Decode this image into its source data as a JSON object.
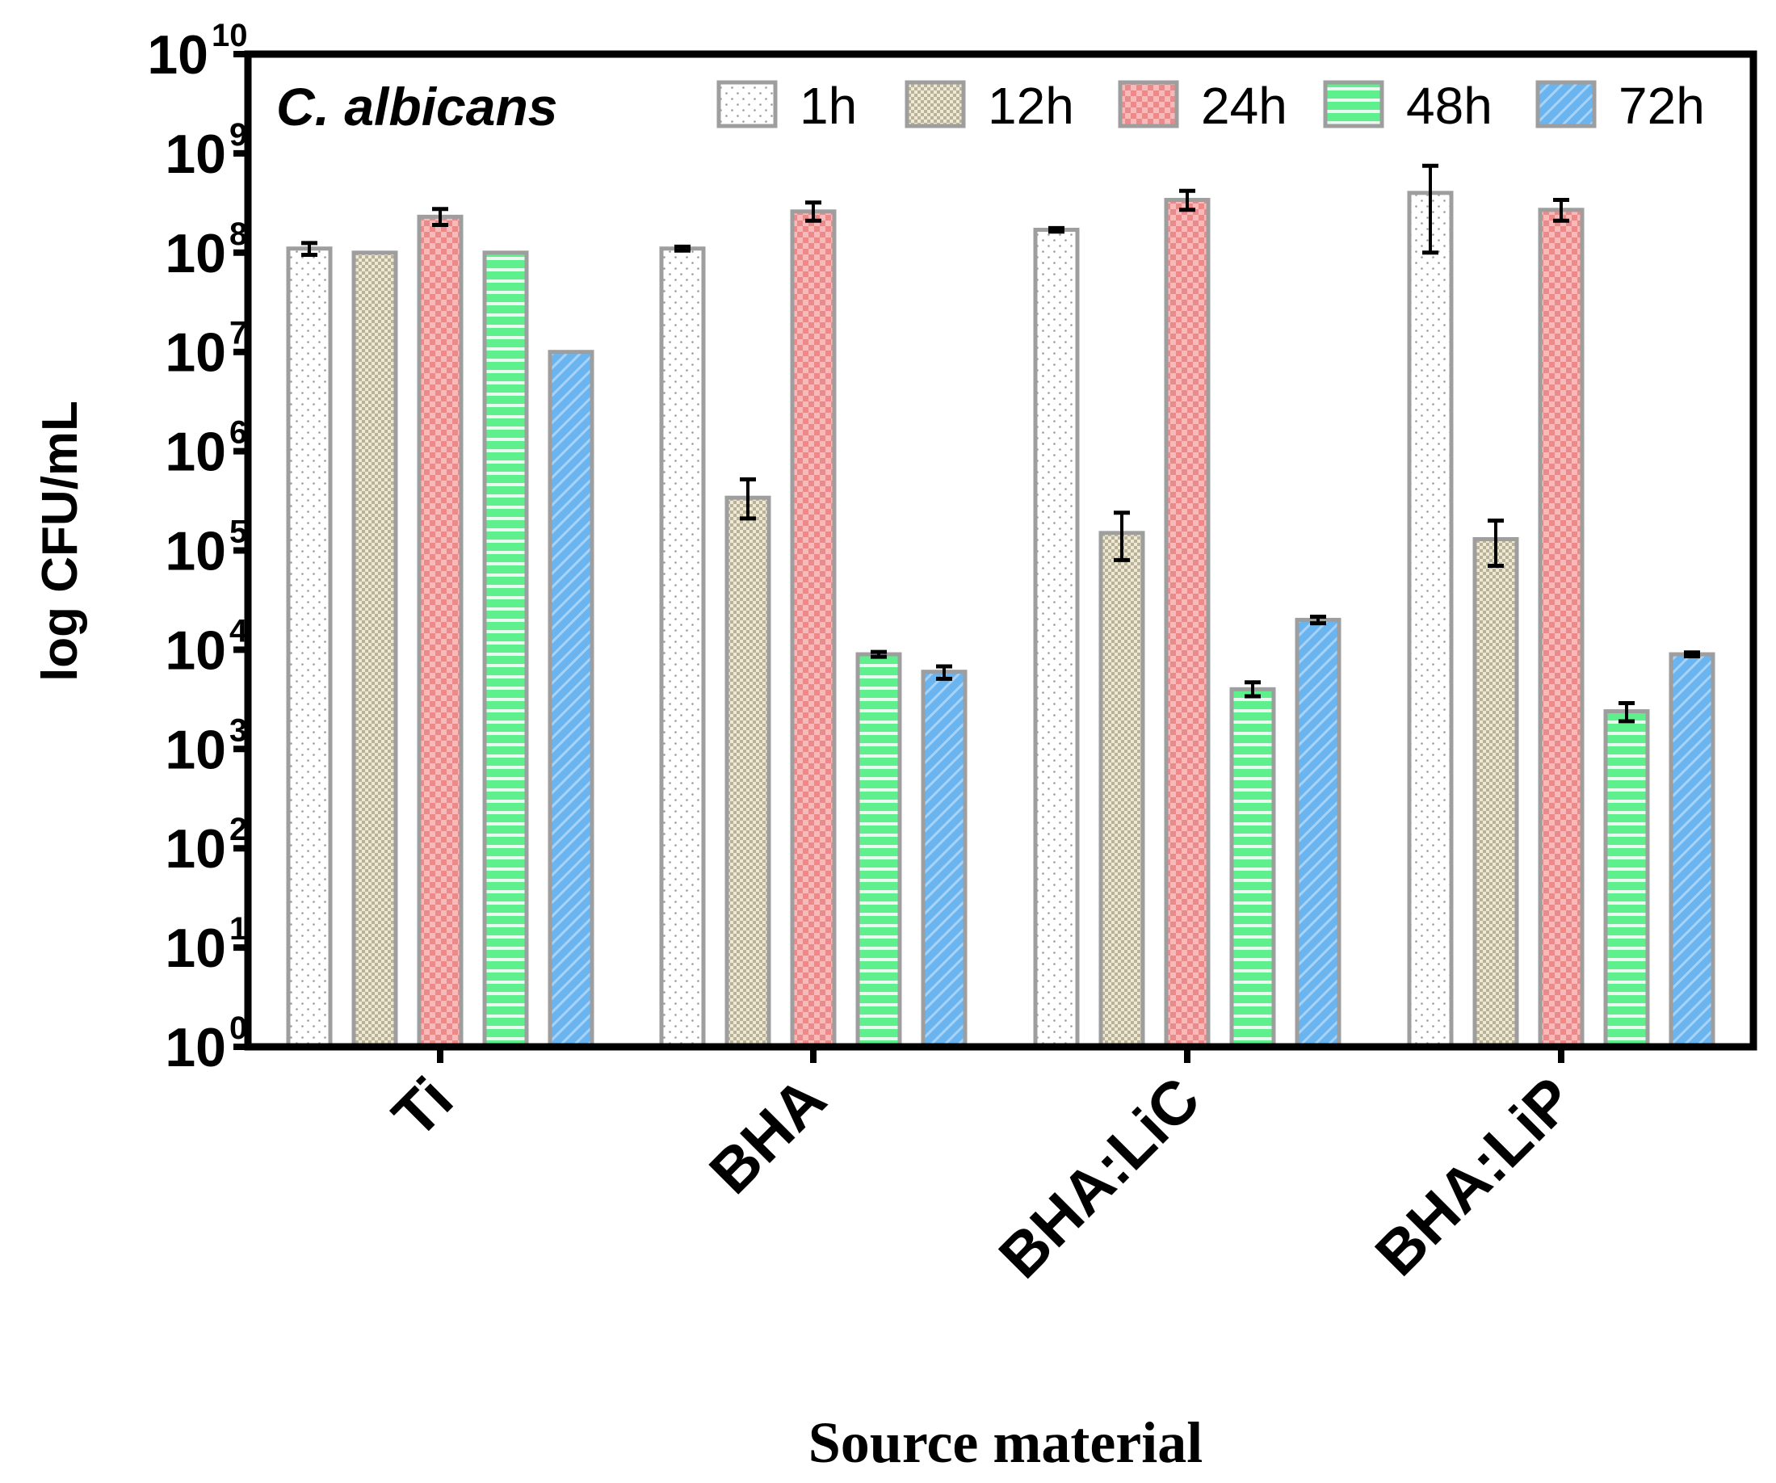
{
  "chart_data": {
    "type": "bar",
    "title": "C. albicans",
    "xlabel": "Source material",
    "ylabel": "log CFU/mL",
    "yscale": "log",
    "ylim": [
      1,
      10000000000
    ],
    "ytick_base": "10",
    "ytick_exponents": [
      "0",
      "1",
      "2",
      "3",
      "4",
      "5",
      "6",
      "7",
      "8",
      "9",
      "10"
    ],
    "categories": [
      "Ti",
      "BHA",
      "BHA:LiC",
      "BHA:LiP"
    ],
    "legend_position": "top",
    "series": [
      {
        "name": "1h",
        "color": "#ffffff",
        "pattern": "dots",
        "values": [
          110000000,
          110000000,
          170000000,
          400000000
        ],
        "err_low": [
          95000000,
          105000000,
          163000000,
          100000000
        ],
        "err_high": [
          125000000,
          115000000,
          177000000,
          750000000
        ]
      },
      {
        "name": "12h",
        "color": "#d8d2bc",
        "pattern": "checker-fine",
        "values": [
          100000000,
          340000,
          150000,
          130000
        ],
        "err_low": [
          null,
          210000,
          80000,
          70000
        ],
        "err_high": [
          null,
          520000,
          240000,
          200000
        ]
      },
      {
        "name": "24h",
        "color": "#f09a9a",
        "pattern": "checker",
        "values": [
          230000000,
          260000000,
          340000000,
          270000000
        ],
        "err_low": [
          190000000,
          210000000,
          270000000,
          210000000
        ],
        "err_high": [
          275000000,
          320000000,
          420000000,
          340000000
        ]
      },
      {
        "name": "48h",
        "color": "#5ef08c",
        "pattern": "horizontal",
        "values": [
          100000000,
          9000,
          4000,
          2400
        ],
        "err_low": [
          null,
          8500,
          3400,
          1900
        ],
        "err_high": [
          null,
          9500,
          4700,
          2900
        ]
      },
      {
        "name": "72h",
        "color": "#6ab4f0",
        "pattern": "diagonal",
        "values": [
          10000000,
          6000,
          20000,
          9000
        ],
        "err_low": [
          null,
          5100,
          18500,
          8600
        ],
        "err_high": [
          null,
          6800,
          21500,
          9400
        ]
      }
    ]
  }
}
